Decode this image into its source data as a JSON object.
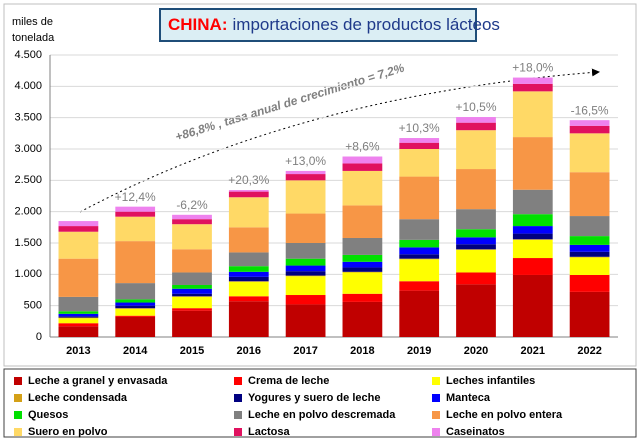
{
  "chart_data": {
    "type": "stacked_bar",
    "title": {
      "country": "CHINA:",
      "text": "importaciones de productos lácteos"
    },
    "ylabel": [
      "miles de",
      "tonelada"
    ],
    "annotation": "+86,8% , tasa anual de crecimiento = 7,2%",
    "categories": [
      "2013",
      "2014",
      "2015",
      "2016",
      "2017",
      "2018",
      "2019",
      "2020",
      "2021",
      "2022"
    ],
    "growth_labels": [
      null,
      "+12,4%",
      "-6,2%",
      "+20,3%",
      "+13,0%",
      "+8,6%",
      "+10,3%",
      "+10,5%",
      "+18,0%",
      "-16,5%"
    ],
    "ylim": [
      0,
      4500
    ],
    "yticks": [
      0,
      500,
      {
        "value": 1000,
        "label": "1.000"
      },
      {
        "value": 1500,
        "label": "1.500"
      },
      {
        "value": 2000,
        "label": "2.000"
      },
      {
        "value": 2500,
        "label": "2.500"
      },
      {
        "value": 3000,
        "label": "3.000"
      },
      {
        "value": 3500,
        "label": "3.500"
      },
      {
        "value": 4000,
        "label": "4.000"
      },
      {
        "value": 4500,
        "label": "4.500"
      }
    ],
    "grid": true,
    "series": [
      {
        "name": "Leche a granel y envasada",
        "color": "#c00000",
        "values": [
          170,
          320,
          420,
          570,
          520,
          560,
          740,
          840,
          990,
          720
        ]
      },
      {
        "name": "Crema de leche",
        "color": "#ff0000",
        "values": [
          50,
          20,
          40,
          80,
          150,
          130,
          150,
          190,
          270,
          270
        ]
      },
      {
        "name": "Leches infantiles",
        "color": "#ffff00",
        "values": [
          80,
          110,
          180,
          230,
          300,
          340,
          350,
          360,
          290,
          280
        ]
      },
      {
        "name": "Leche condensada",
        "color": "#d4a017",
        "values": [
          10,
          10,
          10,
          10,
          10,
          10,
          10,
          10,
          10,
          10
        ]
      },
      {
        "name": "Yogures y suero de leche",
        "color": "#000080",
        "values": [
          20,
          40,
          40,
          70,
          70,
          70,
          70,
          80,
          90,
          80
        ]
      },
      {
        "name": "Manteca",
        "color": "#0000ff",
        "values": [
          40,
          50,
          80,
          80,
          90,
          90,
          110,
          110,
          120,
          110
        ]
      },
      {
        "name": "Quesos",
        "color": "#00e000",
        "values": [
          40,
          50,
          60,
          90,
          110,
          110,
          120,
          130,
          190,
          140
        ]
      },
      {
        "name": "Leche en polvo descremada",
        "color": "#808080",
        "values": [
          230,
          260,
          200,
          220,
          250,
          270,
          330,
          320,
          390,
          320
        ]
      },
      {
        "name": "Leche en polvo entera",
        "color": "#f79646",
        "values": [
          610,
          670,
          370,
          400,
          470,
          520,
          680,
          640,
          840,
          700
        ]
      },
      {
        "name": "Suero en polvo",
        "color": "#ffd966",
        "values": [
          430,
          390,
          400,
          480,
          530,
          550,
          440,
          620,
          730,
          620
        ]
      },
      {
        "name": "Lactosa",
        "color": "#e0115f",
        "values": [
          90,
          80,
          80,
          90,
          100,
          120,
          100,
          120,
          120,
          120
        ]
      },
      {
        "name": "Caseinatos",
        "color": "#ee82ee",
        "values": [
          80,
          80,
          70,
          25,
          50,
          110,
          75,
          90,
          100,
          90
        ]
      }
    ]
  }
}
